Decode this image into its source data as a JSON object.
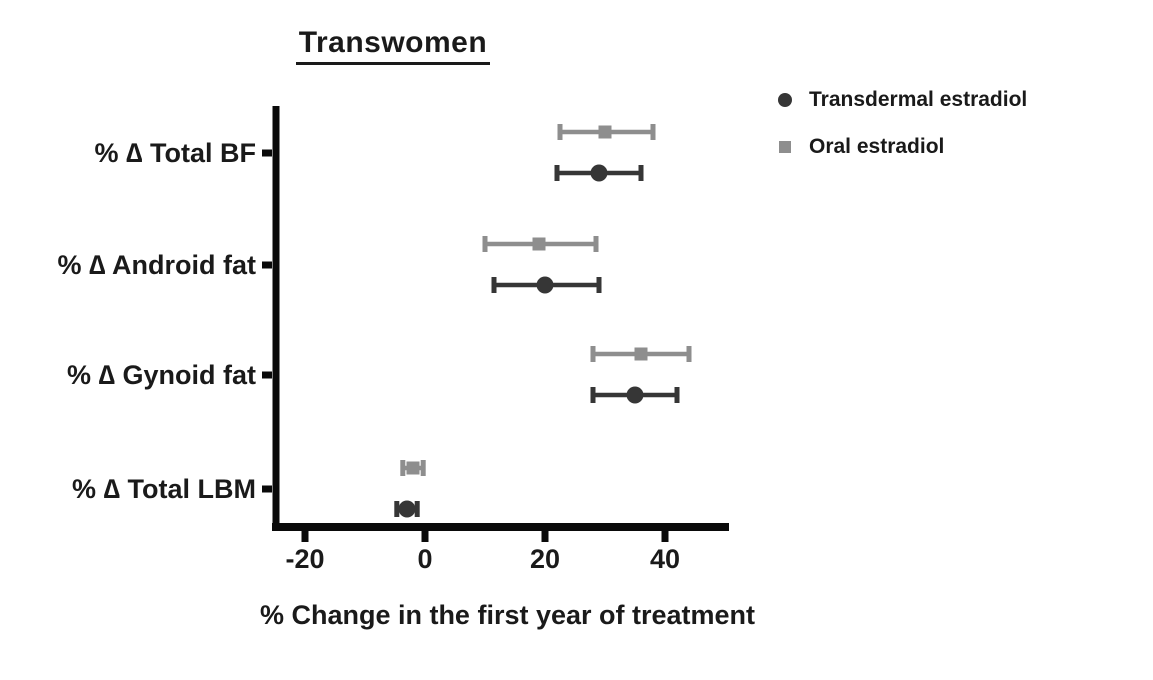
{
  "figure": {
    "title": "Transwomen",
    "x_axis_label": "% Change in the first year of treatment"
  },
  "legend": {
    "position": "top-right",
    "items": [
      {
        "label": "Transdermal estradiol",
        "marker": "circle",
        "color": "#363636"
      },
      {
        "label": "Oral estradiol",
        "marker": "square",
        "color": "#8e8e8e"
      }
    ]
  },
  "colors": {
    "axis": "#0a0a0a",
    "text": "#1a1a1a",
    "transdermal": "#363636",
    "oral": "#8e8e8e",
    "background": "#ffffff"
  },
  "chart_data": {
    "type": "scatter",
    "subtype": "horizontal-point-estimates-with-error-bars",
    "title": "Transwomen",
    "xlabel": "% Change in the first year of treatment",
    "ylabel": "",
    "xlim": [
      -25,
      51
    ],
    "xticks": [
      -20,
      0,
      20,
      40
    ],
    "grid": false,
    "legend_position": "top-right",
    "categories": [
      "% ∆ Total BF",
      "% ∆ Android fat",
      "% ∆ Gynoid fat",
      "% ∆ Total LBM"
    ],
    "series": [
      {
        "name": "Oral estradiol",
        "marker": "square",
        "color": "#8e8e8e",
        "row": "top",
        "values": [
          30,
          19,
          36,
          -2
        ],
        "ci_low": [
          22.5,
          10,
          28,
          -3.7
        ],
        "ci_high": [
          38,
          28.5,
          44,
          -0.3
        ]
      },
      {
        "name": "Transdermal estradiol",
        "marker": "circle",
        "color": "#363636",
        "row": "bottom",
        "values": [
          29,
          20,
          35,
          -3
        ],
        "ci_low": [
          22,
          11.5,
          28,
          -4.7
        ],
        "ci_high": [
          36,
          29,
          42,
          -1.3
        ]
      }
    ]
  }
}
